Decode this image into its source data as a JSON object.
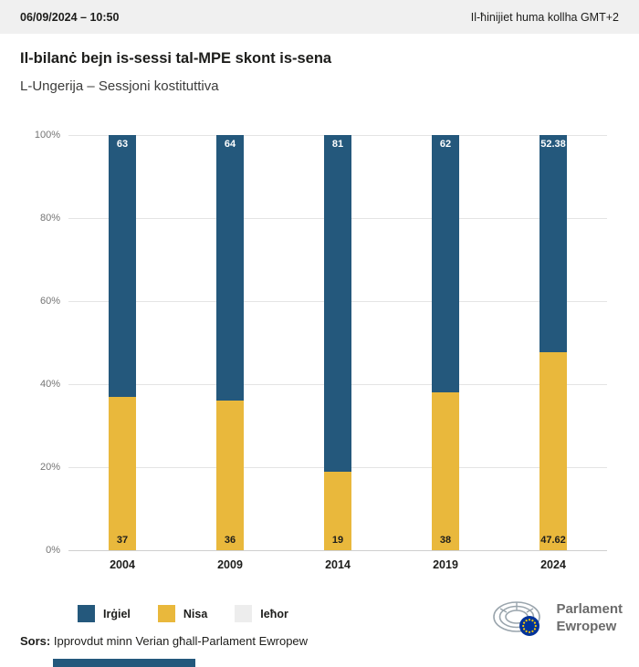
{
  "header": {
    "datetime": "06/09/2024 – 10:50",
    "timezone": "Il-ħinijiet huma kollha GMT+2"
  },
  "title": "Il-bilanċ bejn is-sessi tal-MPE skont is-sena",
  "subtitle": "L-Ungerija – Sessjoni kostituttiva",
  "chart_data": {
    "type": "bar",
    "stacked": true,
    "title": "Il-bilanċ bejn is-sessi tal-MPE skont is-sena",
    "categories": [
      "2004",
      "2009",
      "2014",
      "2019",
      "2024"
    ],
    "series": [
      {
        "name": "Irġiel",
        "color": "#24587c",
        "values": [
          63,
          64,
          81,
          62,
          52.38
        ],
        "labels": [
          "63",
          "64",
          "81",
          "62",
          "52.38"
        ]
      },
      {
        "name": "Nisa",
        "color": "#e9b83c",
        "values": [
          37,
          36,
          19,
          38,
          47.62
        ],
        "labels": [
          "37",
          "36",
          "19",
          "38",
          "47.62"
        ]
      },
      {
        "name": "Ieħor",
        "color": "#ededed",
        "values": [
          0,
          0,
          0,
          0,
          0
        ],
        "labels": [
          "",
          "",
          "",
          "",
          ""
        ]
      }
    ],
    "xlabel": "",
    "ylabel": "",
    "ylim": [
      0,
      100
    ],
    "yticks": [
      "0%",
      "20%",
      "40%",
      "60%",
      "80%",
      "100%"
    ],
    "grid": true,
    "legend_position": "bottom"
  },
  "legend": [
    {
      "label": "Irġiel",
      "color": "#24587c"
    },
    {
      "label": "Nisa",
      "color": "#e9b83c"
    },
    {
      "label": "Ieħor",
      "color": "#ededed"
    }
  ],
  "source": {
    "prefix": "Sors:",
    "text": " Ipprovdut minn Verian għall-Parlament Ewropew"
  },
  "logo": {
    "line1": "Parlament",
    "line2": "Ewropew"
  },
  "colors": {
    "male": "#24587c",
    "female": "#e9b83c",
    "other": "#ededed",
    "topbar_bg": "#f0f0f0",
    "accent_strip": "#24587c",
    "eu_blue": "#003399",
    "eu_star": "#ffcc00"
  }
}
